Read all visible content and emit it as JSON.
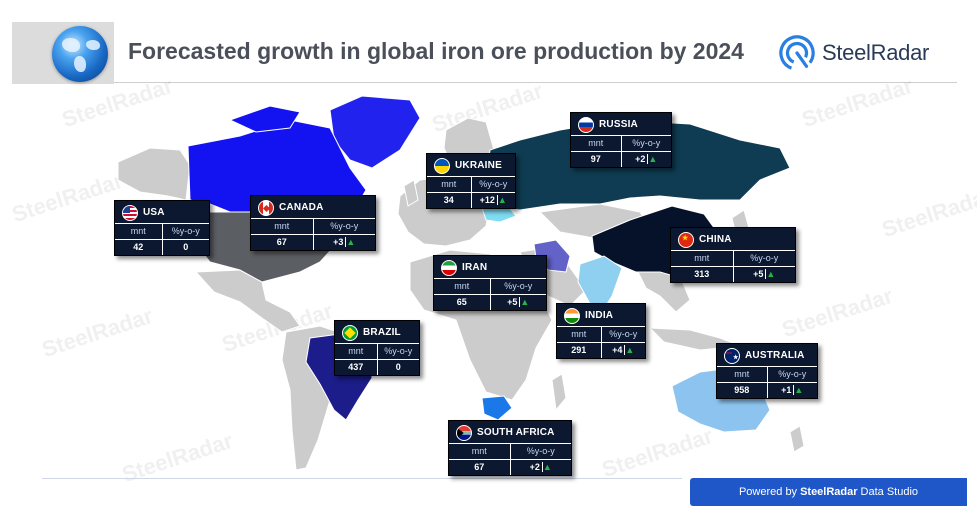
{
  "title": "Forecasted growth in global iron ore production by 2024",
  "logo": {
    "name": "SteelRadar",
    "icon": "steelradar-logo-icon"
  },
  "watermark": "SteelRadar",
  "footer": {
    "prefix": "Powered by",
    "brand": "SteelRadar",
    "suffix": "Data Studio"
  },
  "colors": {
    "title": "#4a4f5a",
    "card_bg": "#0b1830",
    "up_arrow": "#27b34a",
    "footer_bg": "#1f56c8",
    "land_default": "#cccccc"
  },
  "column_headers": {
    "unit": "mnt",
    "change": "%y-o-y"
  },
  "chart_data": {
    "type": "choropleth-map",
    "title": "Forecasted growth in global iron ore production by 2024",
    "unit": "mnt",
    "change_unit": "%y-o-y",
    "countries": [
      {
        "name": "USA",
        "value": 42,
        "change": "0",
        "trend": "flat",
        "color": "#5b5e63"
      },
      {
        "name": "CANADA",
        "value": 67,
        "change": "+3",
        "trend": "up",
        "color": "#1313f2"
      },
      {
        "name": "UKRAINE",
        "value": 34,
        "change": "+12",
        "trend": "up",
        "color": "#7fdcf2"
      },
      {
        "name": "RUSSIA",
        "value": 97,
        "change": "+2",
        "trend": "up",
        "color": "#0f3c52"
      },
      {
        "name": "CHINA",
        "value": 313,
        "change": "+5",
        "trend": "up",
        "color": "#061229"
      },
      {
        "name": "IRAN",
        "value": 65,
        "change": "+5",
        "trend": "up",
        "color": "#6262c8"
      },
      {
        "name": "INDIA",
        "value": 291,
        "change": "+4",
        "trend": "up",
        "color": "#8fd0f0"
      },
      {
        "name": "BRAZIL",
        "value": 437,
        "change": "0",
        "trend": "flat",
        "color": "#1c1c8a"
      },
      {
        "name": "SOUTH AFRICA",
        "value": 67,
        "change": "+2",
        "trend": "up",
        "color": "#1a78e8"
      },
      {
        "name": "AUSTRALIA",
        "value": 958,
        "change": "+1",
        "trend": "up",
        "color": "#8dc4ef"
      }
    ]
  }
}
